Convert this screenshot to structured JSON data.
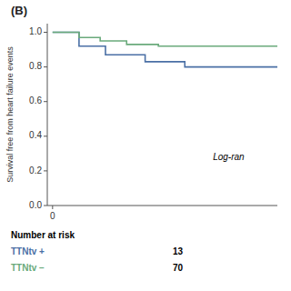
{
  "chart_data": {
    "type": "step",
    "title": "(B)",
    "y_label": "Survival free from heart failure events",
    "xlim": [
      -0.2,
      8.5
    ],
    "xticks": [
      0
    ],
    "ylim": [
      0.0,
      1.05
    ],
    "yticks": [
      {
        "value": 0.0,
        "label": "0.0"
      },
      0.2,
      0.4,
      0.6,
      0.8,
      {
        "value": 1.0,
        "label": "1.0"
      }
    ],
    "grid": false,
    "annotation": "Log-ran",
    "table_title": "Number at risk",
    "series": [
      {
        "name": "TTNtv +",
        "color": "#4a6fa5",
        "at_risk": 13,
        "x": [
          0,
          1.0,
          1.0,
          2.0,
          2.0,
          3.5,
          3.5,
          5.0,
          5.0,
          8.5
        ],
        "values": [
          1.0,
          1.0,
          0.92,
          0.92,
          0.87,
          0.87,
          0.83,
          0.83,
          0.8,
          0.8
        ]
      },
      {
        "name": "TTNtv −",
        "color": "#6aaa7b",
        "at_risk": 70,
        "x": [
          0,
          1.0,
          1.0,
          1.8,
          1.8,
          2.8,
          2.8,
          4.0,
          4.0,
          8.5
        ],
        "values": [
          1.0,
          1.0,
          0.97,
          0.97,
          0.95,
          0.95,
          0.93,
          0.93,
          0.92,
          0.92
        ]
      }
    ]
  }
}
